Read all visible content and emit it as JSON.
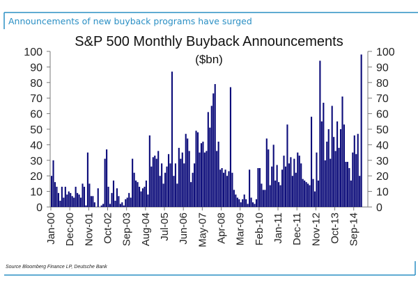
{
  "header": {
    "subtitle": "Announcements of new buyback programs have surged"
  },
  "footer": {
    "source": "Source  Bloomberg Finance LP,  Deutsche Bank"
  },
  "colors": {
    "bar": "#0c0c7a",
    "frame": "#2a8fc4"
  },
  "chart_data": {
    "type": "bar",
    "title": "S&P 500 Monthly Buyback Announcements",
    "subtitle": "($bn)",
    "xlabel": "",
    "ylabel": "$bn",
    "ylim": [
      0,
      100
    ],
    "yticks": [
      0,
      10,
      20,
      30,
      40,
      50,
      60,
      70,
      80,
      90,
      100
    ],
    "x_start": "Jan-00",
    "x_frequency": "monthly",
    "xtick_labels": [
      "Jan-00",
      "Dec-00",
      "Nov-01",
      "Oct-02",
      "Sep-03",
      "Aug-04",
      "Jul-05",
      "Jun-06",
      "May-07",
      "Apr-08",
      "Mar-09",
      "Feb-10",
      "Jan-11",
      "Dec-11",
      "Nov-12",
      "Oct-13",
      "Sep-14"
    ],
    "xtick_every_months": 11,
    "values": [
      20,
      30,
      16,
      13,
      9,
      4,
      13,
      6,
      13,
      8,
      10,
      9,
      7,
      6,
      13,
      9,
      8,
      6,
      15,
      13,
      1,
      35,
      15,
      7,
      7,
      3,
      0,
      12,
      0,
      1,
      2,
      31,
      37,
      13,
      2,
      9,
      17,
      4,
      12,
      7,
      2,
      3,
      1,
      5,
      6,
      9,
      6,
      31,
      22,
      17,
      16,
      13,
      10,
      12,
      13,
      17,
      8,
      46,
      26,
      32,
      33,
      31,
      36,
      20,
      28,
      15,
      22,
      26,
      34,
      28,
      87,
      20,
      28,
      15,
      38,
      31,
      35,
      28,
      47,
      44,
      36,
      16,
      22,
      28,
      49,
      48,
      35,
      41,
      42,
      35,
      36,
      61,
      51,
      65,
      73,
      79,
      36,
      42,
      24,
      25,
      22,
      24,
      20,
      23,
      77,
      22,
      11,
      8,
      6,
      5,
      3,
      5,
      8,
      5,
      2,
      24,
      6,
      3,
      2,
      5,
      25,
      25,
      15,
      11,
      11,
      44,
      37,
      14,
      26,
      40,
      17,
      27,
      16,
      14,
      24,
      33,
      26,
      53,
      28,
      32,
      20,
      31,
      22,
      35,
      33,
      28,
      18,
      17,
      16,
      15,
      14,
      58,
      18,
      10,
      35,
      17,
      94,
      55,
      67,
      30,
      42,
      50,
      31,
      65,
      45,
      36,
      55,
      38,
      50,
      71,
      53,
      29,
      29,
      25,
      17,
      35,
      46,
      34,
      47,
      20,
      98
    ],
    "legend": "none",
    "grid": false
  }
}
